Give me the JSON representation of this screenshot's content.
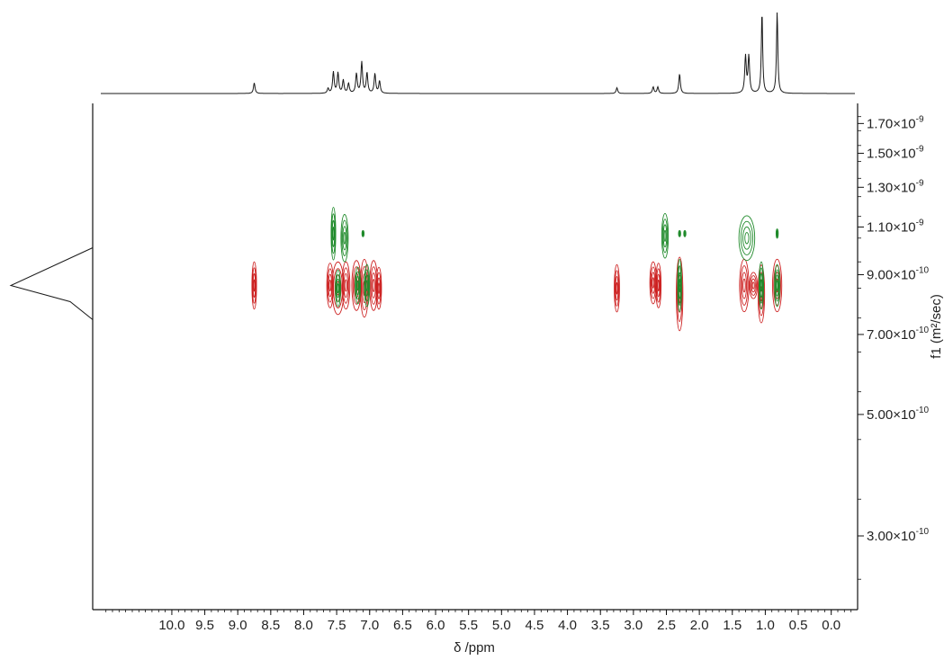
{
  "chart_data": {
    "type": "contour",
    "xlabel": "δ /ppm",
    "ylabel": "f1 (m²/sec)",
    "xlim": [
      11.2,
      -0.4
    ],
    "x_ticks": [
      "10.0",
      "9.5",
      "9.0",
      "8.5",
      "8.0",
      "7.5",
      "7.0",
      "6.5",
      "6.0",
      "5.5",
      "5.0",
      "4.5",
      "4.0",
      "3.5",
      "3.0",
      "2.5",
      "2.0",
      "1.5",
      "1.0",
      "0.5",
      "0.0"
    ],
    "y_scale": "log",
    "ylim": [
      2.2e-10,
      1.85e-09
    ],
    "y_ticks": [
      {
        "mantissa": "3.00×10",
        "exponent": "-10",
        "value": 3e-10
      },
      {
        "mantissa": "5.00×10",
        "exponent": "-10",
        "value": 5e-10
      },
      {
        "mantissa": "7.00×10",
        "exponent": "-10",
        "value": 7e-10
      },
      {
        "mantissa": "9.00×10",
        "exponent": "-10",
        "value": 9e-10
      },
      {
        "mantissa": "1.10×10",
        "exponent": "-9",
        "value": 1.1e-09
      },
      {
        "mantissa": "1.30×10",
        "exponent": "-9",
        "value": 1.3e-09
      },
      {
        "mantissa": "1.50×10",
        "exponent": "-9",
        "value": 1.5e-09
      },
      {
        "mantissa": "1.70×10",
        "exponent": "-9",
        "value": 1.7e-09
      }
    ],
    "colors": {
      "positive": "#1f8a2a",
      "negative": "#cc1f1f",
      "trace": "#1a1a1a"
    },
    "spectrum_1d": [
      {
        "ppm": 8.75,
        "height": 0.13
      },
      {
        "ppm": 7.63,
        "height": 0.06
      },
      {
        "ppm": 7.55,
        "height": 0.26
      },
      {
        "ppm": 7.48,
        "height": 0.25
      },
      {
        "ppm": 7.4,
        "height": 0.16
      },
      {
        "ppm": 7.32,
        "height": 0.12
      },
      {
        "ppm": 7.2,
        "height": 0.24
      },
      {
        "ppm": 7.12,
        "height": 0.38
      },
      {
        "ppm": 7.04,
        "height": 0.25
      },
      {
        "ppm": 6.92,
        "height": 0.24
      },
      {
        "ppm": 6.85,
        "height": 0.15
      },
      {
        "ppm": 3.25,
        "height": 0.07
      },
      {
        "ppm": 2.7,
        "height": 0.08
      },
      {
        "ppm": 2.63,
        "height": 0.08
      },
      {
        "ppm": 2.3,
        "height": 0.24
      },
      {
        "ppm": 1.3,
        "height": 0.45
      },
      {
        "ppm": 1.25,
        "height": 0.45
      },
      {
        "ppm": 1.05,
        "height": 1.0
      },
      {
        "ppm": 0.82,
        "height": 1.0
      }
    ],
    "diffusion_projection": {
      "center": 8.6e-10,
      "peak_height": 1.0
    },
    "contours_negative": [
      {
        "ppm": 8.75,
        "d": 8.6e-10,
        "rx": 0.035,
        "ry": 0.9
      },
      {
        "ppm": 7.6,
        "d": 8.6e-10,
        "rx": 0.05,
        "ry": 0.85
      },
      {
        "ppm": 7.48,
        "d": 8.5e-10,
        "rx": 0.09,
        "ry": 1.0
      },
      {
        "ppm": 7.36,
        "d": 8.6e-10,
        "rx": 0.06,
        "ry": 0.9
      },
      {
        "ppm": 7.2,
        "d": 8.6e-10,
        "rx": 0.07,
        "ry": 0.95
      },
      {
        "ppm": 7.08,
        "d": 8.5e-10,
        "rx": 0.06,
        "ry": 1.1
      },
      {
        "ppm": 6.94,
        "d": 8.6e-10,
        "rx": 0.06,
        "ry": 0.95
      },
      {
        "ppm": 6.86,
        "d": 8.5e-10,
        "rx": 0.04,
        "ry": 0.8
      },
      {
        "ppm": 3.25,
        "d": 8.5e-10,
        "rx": 0.04,
        "ry": 0.9
      },
      {
        "ppm": 2.7,
        "d": 8.7e-10,
        "rx": 0.05,
        "ry": 0.8
      },
      {
        "ppm": 2.62,
        "d": 8.6e-10,
        "rx": 0.04,
        "ry": 0.85
      },
      {
        "ppm": 2.3,
        "d": 8.3e-10,
        "rx": 0.05,
        "ry": 1.4
      },
      {
        "ppm": 1.32,
        "d": 8.6e-10,
        "rx": 0.07,
        "ry": 1.0
      },
      {
        "ppm": 1.18,
        "d": 8.6e-10,
        "rx": 0.06,
        "ry": 0.5
      },
      {
        "ppm": 1.06,
        "d": 8.3e-10,
        "rx": 0.05,
        "ry": 1.1
      },
      {
        "ppm": 0.82,
        "d": 8.6e-10,
        "rx": 0.07,
        "ry": 1.0
      }
    ],
    "contours_positive": [
      {
        "ppm": 7.55,
        "d": 1.07e-09,
        "rx": 0.035,
        "ry": 1.0
      },
      {
        "ppm": 7.38,
        "d": 1.05e-09,
        "rx": 0.055,
        "ry": 0.9
      },
      {
        "ppm": 7.1,
        "d": 1.07e-09,
        "rx": 0.012,
        "ry": 0.12
      },
      {
        "ppm": 7.48,
        "d": 8.5e-10,
        "rx": 0.04,
        "ry": 0.7
      },
      {
        "ppm": 7.18,
        "d": 8.6e-10,
        "rx": 0.04,
        "ry": 0.7
      },
      {
        "ppm": 7.04,
        "d": 8.6e-10,
        "rx": 0.04,
        "ry": 0.8
      },
      {
        "ppm": 2.52,
        "d": 1.06e-09,
        "rx": 0.05,
        "ry": 0.85
      },
      {
        "ppm": 2.3,
        "d": 1.07e-09,
        "rx": 0.01,
        "ry": 0.12
      },
      {
        "ppm": 2.22,
        "d": 1.07e-09,
        "rx": 0.01,
        "ry": 0.12
      },
      {
        "ppm": 2.3,
        "d": 8.6e-10,
        "rx": 0.03,
        "ry": 1.0
      },
      {
        "ppm": 1.28,
        "d": 1.05e-09,
        "rx": 0.12,
        "ry": 0.85
      },
      {
        "ppm": 0.82,
        "d": 1.07e-09,
        "rx": 0.012,
        "ry": 0.18
      },
      {
        "ppm": 1.06,
        "d": 8.6e-10,
        "rx": 0.035,
        "ry": 0.9
      },
      {
        "ppm": 0.82,
        "d": 8.6e-10,
        "rx": 0.04,
        "ry": 0.8
      }
    ]
  }
}
